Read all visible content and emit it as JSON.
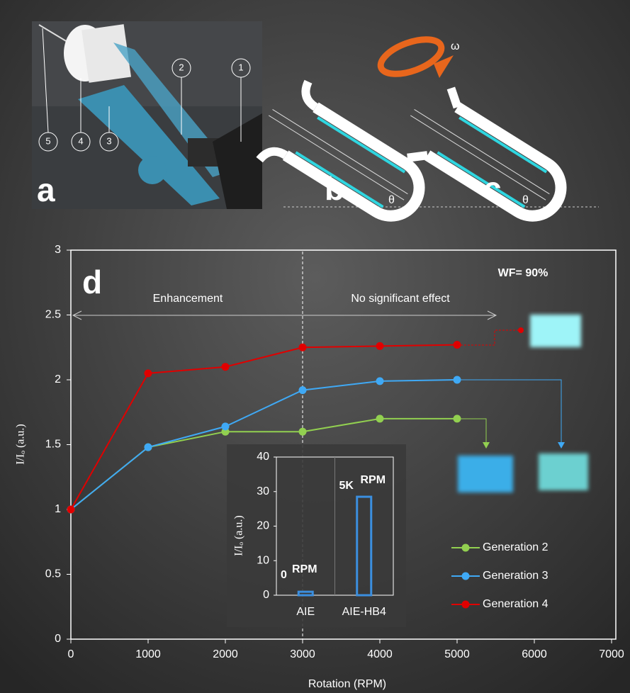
{
  "figure": {
    "panel_labels": [
      "a",
      "b",
      "c"
    ],
    "photo_callouts": [
      "1",
      "2",
      "3",
      "4",
      "5"
    ],
    "angle_symbol": "θ",
    "rotation_symbol": "ω"
  },
  "chart_data": [
    {
      "type": "line",
      "panel_label": "d",
      "annotation": "WF= 90%",
      "regions": [
        "Enhancement",
        "No significant effect"
      ],
      "x_label": "Rotation (RPM)",
      "y_label": "I/Iₒ (a.u.)",
      "x": [
        0,
        1000,
        2000,
        3000,
        4000,
        5000
      ],
      "series": [
        {
          "name": "Generation 2",
          "color": "#92d050",
          "values": [
            1,
            1.48,
            1.6,
            1.6,
            1.7,
            1.7
          ]
        },
        {
          "name": "Generation 3",
          "color": "#3fa9f5",
          "values": [
            1,
            1.48,
            1.64,
            1.92,
            1.99,
            2.0
          ]
        },
        {
          "name": "Generation 4",
          "color": "#e00000",
          "values": [
            1,
            2.05,
            2.1,
            2.25,
            2.26,
            2.27
          ]
        }
      ],
      "xlim": [
        0,
        7000
      ],
      "xticks": [
        0,
        1000,
        2000,
        3000,
        4000,
        5000,
        6000,
        7000
      ],
      "ylim": [
        0,
        3
      ],
      "yticks": [
        0,
        0.5,
        1,
        1.5,
        2,
        2.5,
        3
      ],
      "grid": false,
      "legend": "lower right"
    },
    {
      "type": "bar",
      "y_label": "I/Iₒ (a.u.)",
      "categories": [
        "AIE",
        "AIE-HB4"
      ],
      "values": [
        1,
        28.5
      ],
      "bar_notes": [
        {
          "text": "0",
          "sup": "RPM"
        },
        {
          "text": "5K",
          "sup": "RPM"
        }
      ],
      "color": "#3b8fe0",
      "ylim": [
        0,
        40
      ],
      "yticks": [
        0,
        10,
        20,
        30,
        40
      ]
    }
  ]
}
